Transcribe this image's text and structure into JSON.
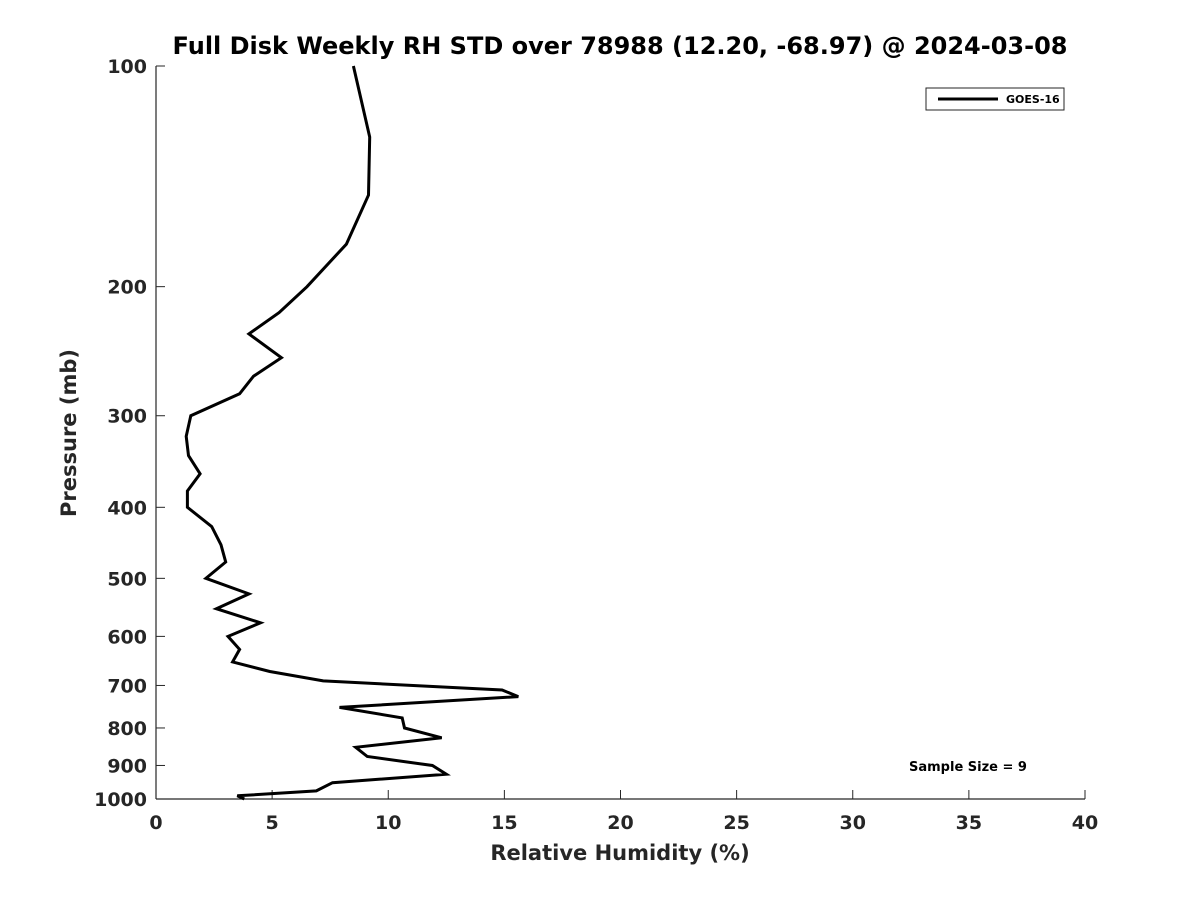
{
  "chart_data": {
    "type": "line",
    "title": "Full Disk Weekly RH STD over 78988 (12.20, -68.97) @ 2024-03-08",
    "xlabel": "Relative Humidity (%)",
    "ylabel": "Pressure (mb)",
    "xlim": [
      0,
      40
    ],
    "ylim": [
      100,
      1000
    ],
    "yscale": "log",
    "y_inverted": true,
    "xticks": [
      "0",
      "5",
      "10",
      "15",
      "20",
      "25",
      "30",
      "35",
      "40"
    ],
    "yticks": [
      "100",
      "200",
      "300",
      "400",
      "500",
      "600",
      "700",
      "800",
      "900",
      "1000"
    ],
    "grid": false,
    "legend": {
      "placement": "top-right",
      "entries": [
        "GOES-16"
      ]
    },
    "annotation": "Sample Size = 9",
    "series": [
      {
        "name": "GOES-16",
        "color": "#000000",
        "x": [
          8.5,
          9.2,
          9.15,
          8.2,
          6.5,
          5.3,
          4.0,
          5.4,
          4.2,
          3.6,
          1.5,
          1.3,
          1.4,
          1.9,
          1.35,
          1.35,
          2.4,
          2.8,
          3.0,
          2.15,
          4.0,
          2.6,
          4.5,
          3.1,
          3.6,
          3.3,
          4.9,
          7.2,
          14.9,
          15.6,
          7.9,
          10.6,
          10.7,
          12.3,
          8.6,
          9.1,
          11.9,
          12.5,
          7.6,
          6.9,
          3.5,
          3.8
        ],
        "y": [
          100,
          125,
          150,
          175,
          200,
          217,
          232,
          250,
          265,
          280,
          300,
          320,
          340,
          360,
          380,
          400,
          425,
          450,
          475,
          500,
          525,
          550,
          575,
          600,
          625,
          650,
          670,
          690,
          710,
          725,
          750,
          775,
          800,
          825,
          850,
          875,
          900,
          925,
          950,
          975,
          990,
          1000
        ]
      }
    ]
  }
}
